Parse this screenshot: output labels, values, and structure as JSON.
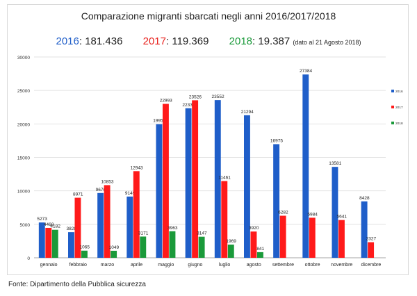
{
  "title": "Comparazione migranti sbarcati negli anni 2016/2017/2018",
  "totals": {
    "y2016": {
      "year": "2016",
      "value": "181.436",
      "color": "#1f5ec9"
    },
    "y2017": {
      "year": "2017",
      "value": "119.369",
      "color": "#e8211d"
    },
    "y2018": {
      "year": "2018",
      "value": "19.387",
      "color": "#1a9a3a",
      "note": "(dato al 21 Agosto 2018)"
    }
  },
  "source": "Fonte: Dipartimento della Pubblica sicurezza",
  "chart_data": {
    "type": "bar",
    "title": "Comparazione migranti sbarcati negli anni 2016/2017/2018",
    "xlabel": "",
    "ylabel": "",
    "ylim": [
      0,
      30000
    ],
    "yticks": [
      0,
      5000,
      10000,
      15000,
      20000,
      25000,
      30000
    ],
    "categories": [
      "gennaio",
      "febbraio",
      "marzo",
      "aprile",
      "maggio",
      "giugno",
      "luglio",
      "agosto",
      "settembre",
      "ottobre",
      "novembre",
      "dicembre"
    ],
    "legend_position": "right",
    "series": [
      {
        "name": "2016",
        "color": "#1f5ec9",
        "values": [
          5273,
          3828,
          9676,
          9149,
          19957,
          22339,
          23552,
          21294,
          16975,
          27384,
          13581,
          8428
        ]
      },
      {
        "name": "2017",
        "color": "#ff1a1a",
        "values": [
          4468,
          8971,
          10853,
          12943,
          22993,
          23526,
          11461,
          3920,
          6282,
          5984,
          5641,
          2327
        ]
      },
      {
        "name": "2018",
        "color": "#1a9a3a",
        "values": [
          4182,
          1065,
          1049,
          3171,
          3963,
          3147,
          1969,
          841,
          null,
          null,
          null,
          null
        ]
      }
    ],
    "data_labels": [
      [
        "5273",
        "3828",
        "9676",
        "9149",
        "19957",
        "22339",
        "23552",
        "21294",
        "16975",
        "27384",
        "13581",
        "8428"
      ],
      [
        "4468",
        "8971",
        "10853",
        "12943",
        "22993",
        "23526",
        "11461",
        "3920",
        "6282",
        "5984",
        "5641",
        "2327"
      ],
      [
        "4182",
        "1065",
        "1049",
        "3171",
        "3963",
        "3147",
        "1969",
        "841",
        null,
        null,
        null,
        null
      ]
    ]
  }
}
